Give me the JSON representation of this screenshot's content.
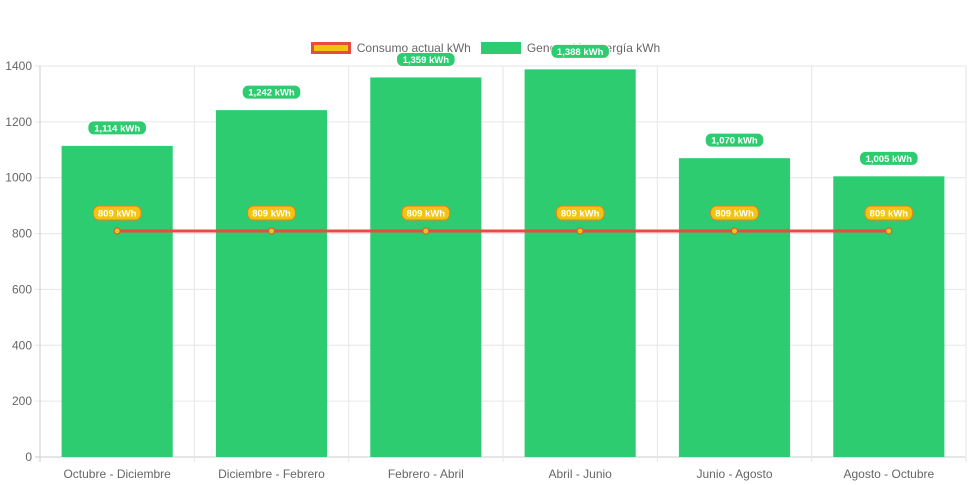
{
  "chart_data": {
    "type": "bar",
    "categories": [
      "Octubre - Diciembre",
      "Diciembre - Febrero",
      "Febrero - Abril",
      "Abril - Junio",
      "Junio - Agosto",
      "Agosto - Octubre"
    ],
    "series": [
      {
        "name": "Consumo actual kWh",
        "type": "line",
        "values": [
          809,
          809,
          809,
          809,
          809,
          809
        ],
        "labels": [
          "809 kWh",
          "809 kWh",
          "809 kWh",
          "809 kWh",
          "809 kWh",
          "809 kWh"
        ],
        "color": "#e74c3c",
        "fill": "#f1c40f"
      },
      {
        "name": "Generación energía kWh",
        "type": "bar",
        "values": [
          1114,
          1242,
          1359,
          1388,
          1070,
          1005
        ],
        "labels": [
          "1,114 kWh",
          "1,242 kWh",
          "1,359 kWh",
          "1,388 kWh",
          "1,070 kWh",
          "1,005 kWh"
        ],
        "color": "#2ecc71"
      }
    ],
    "y_ticks": [
      "0",
      "200",
      "400",
      "600",
      "800",
      "1000",
      "1200",
      "1400"
    ],
    "ylim": [
      0,
      1400
    ],
    "grid": true,
    "legend_position": "top-center"
  }
}
